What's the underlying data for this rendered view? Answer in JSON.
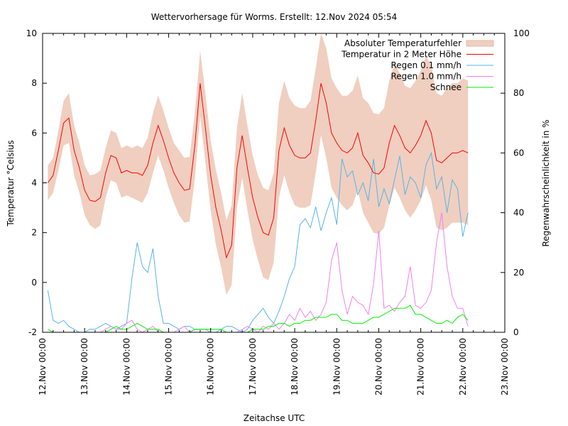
{
  "chart_data": {
    "type": "line",
    "title": "Wettervorhersage für Worms. Erstellt: 12.Nov 2024 05:54",
    "xlabel": "Zeitachse UTC",
    "ylabel": "Temperatur °Celsius",
    "y2label": "Regenwahrscheinlichkeit in %",
    "xlim_hours": [
      0,
      264
    ],
    "ylim": [
      -2,
      10
    ],
    "y2lim": [
      0,
      100
    ],
    "yticks": [
      "-2",
      "0",
      "2",
      "4",
      "6",
      "8",
      "10"
    ],
    "y2ticks": [
      "0",
      "20",
      "40",
      "60",
      "80",
      "100"
    ],
    "xticks": [
      "12.Nov 00:00",
      "13.Nov 00:00",
      "14.Nov 00:00",
      "15.Nov 00:00",
      "16.Nov 00:00",
      "17.Nov 00:00",
      "18.Nov 00:00",
      "19.Nov 00:00",
      "20.Nov 00:00",
      "21.Nov 00:00",
      "22.Nov 00:00",
      "23.Nov 00:00"
    ],
    "grid": false,
    "legend_position": "top-right",
    "legend": [
      {
        "label": "Absoluter Temperaturfehler",
        "color": "#f0cfc0",
        "kind": "band"
      },
      {
        "label": "Temperatur in 2 Meter Höhe",
        "color": "#ff0000",
        "kind": "line"
      },
      {
        "label": "Regen 0.1 mm/h",
        "color": "#56b4e9",
        "kind": "line"
      },
      {
        "label": "Regen 1.0 mm/h",
        "color": "#ee82ee",
        "kind": "line"
      },
      {
        "label": "Schnee",
        "color": "#00ee00",
        "kind": "line"
      }
    ],
    "x_hours": [
      3,
      6,
      9,
      12,
      15,
      18,
      21,
      24,
      27,
      30,
      33,
      36,
      39,
      42,
      45,
      48,
      51,
      54,
      57,
      60,
      63,
      66,
      69,
      72,
      75,
      78,
      81,
      84,
      87,
      90,
      93,
      96,
      99,
      102,
      105,
      108,
      111,
      114,
      117,
      120,
      123,
      126,
      129,
      132,
      135,
      138,
      141,
      144,
      147,
      150,
      153,
      156,
      159,
      162,
      165,
      168,
      171,
      174,
      177,
      180,
      183,
      186,
      189,
      192,
      195,
      198,
      201,
      204,
      207,
      210,
      213,
      216,
      219,
      222,
      225,
      228,
      231,
      234,
      237,
      240,
      243
    ],
    "series": [
      {
        "name": "Temperatur in 2 Meter Höhe",
        "axis": "left",
        "values": [
          4.0,
          4.3,
          5.3,
          6.4,
          6.6,
          5.3,
          4.6,
          3.7,
          3.3,
          3.25,
          3.4,
          4.4,
          5.1,
          5.0,
          4.4,
          4.5,
          4.4,
          4.4,
          4.3,
          4.7,
          5.6,
          6.3,
          5.7,
          5.0,
          4.4,
          4.0,
          3.7,
          3.75,
          5.5,
          8.0,
          6.2,
          4.3,
          3.0,
          2.1,
          1.0,
          1.5,
          4.6,
          5.9,
          4.6,
          3.4,
          2.6,
          2.0,
          1.9,
          2.6,
          5.3,
          6.2,
          5.5,
          5.1,
          5.0,
          5.0,
          5.2,
          6.5,
          8.0,
          7.2,
          6.0,
          5.6,
          5.3,
          5.2,
          5.4,
          6.0,
          5.1,
          4.8,
          4.4,
          4.35,
          4.6,
          5.6,
          6.3,
          5.9,
          5.4,
          5.2,
          5.5,
          5.9,
          6.5,
          6.0,
          4.9,
          4.8,
          5.0,
          5.2,
          5.2,
          5.3,
          5.2
        ],
        "error_abs": [
          0.7,
          0.7,
          0.8,
          0.9,
          1.0,
          1.0,
          1.0,
          1.0,
          1.0,
          1.1,
          1.1,
          1.0,
          1.0,
          1.0,
          1.0,
          1.0,
          1.0,
          1.1,
          1.1,
          1.1,
          1.2,
          1.2,
          1.2,
          1.2,
          1.2,
          1.3,
          1.3,
          1.3,
          1.3,
          1.3,
          1.4,
          1.4,
          1.5,
          1.5,
          1.5,
          1.6,
          1.6,
          1.7,
          1.7,
          1.7,
          1.7,
          1.8,
          1.8,
          1.8,
          1.9,
          1.9,
          1.9,
          2.0,
          2.0,
          2.0,
          2.1,
          2.1,
          2.1,
          2.2,
          2.2,
          2.2,
          2.2,
          2.3,
          2.3,
          2.3,
          2.3,
          2.4,
          2.4,
          2.4,
          2.4,
          2.5,
          2.5,
          2.5,
          2.5,
          2.6,
          2.6,
          2.6,
          2.6,
          2.7,
          2.7,
          2.7,
          2.8,
          2.8,
          2.8,
          2.9,
          2.9
        ]
      },
      {
        "name": "Regen 0.1 mm/h",
        "axis": "right",
        "values": [
          14,
          4,
          3,
          4,
          2,
          1,
          0,
          0,
          1,
          1,
          2,
          3,
          2,
          1,
          2,
          3,
          18,
          30,
          22,
          20,
          28,
          12,
          3,
          3,
          2,
          1,
          2,
          2,
          1,
          1,
          1,
          0,
          0,
          1,
          2,
          2,
          1,
          0,
          1,
          4,
          6,
          8,
          5,
          3,
          7,
          12,
          18,
          22,
          36,
          38,
          35,
          42,
          34,
          40,
          45,
          36,
          58,
          52,
          54,
          46,
          50,
          44,
          58,
          42,
          48,
          43,
          51,
          59,
          46,
          52,
          50,
          45,
          56,
          60,
          48,
          52,
          40,
          51,
          48,
          32,
          40
        ]
      },
      {
        "name": "Regen 1.0 mm/h",
        "axis": "right",
        "values": [
          0,
          0,
          0,
          0,
          0,
          0,
          0,
          0,
          0,
          0,
          0,
          1,
          2,
          1,
          1,
          3,
          4,
          1,
          0,
          1,
          2,
          0,
          0,
          0,
          0,
          1,
          2,
          0,
          0,
          0,
          0,
          0,
          0,
          0,
          0,
          0,
          0,
          1,
          2,
          1,
          0,
          2,
          1,
          3,
          1,
          3,
          6,
          4,
          8,
          5,
          7,
          4,
          6,
          10,
          24,
          30,
          14,
          6,
          12,
          10,
          9,
          6,
          16,
          34,
          8,
          9,
          7,
          10,
          12,
          22,
          9,
          8,
          10,
          14,
          30,
          40,
          22,
          12,
          8,
          8,
          2
        ]
      },
      {
        "name": "Schnee",
        "axis": "right",
        "values": [
          1,
          0,
          0,
          0,
          0,
          0,
          0,
          0,
          0,
          0,
          0,
          0,
          1,
          2,
          1,
          1,
          2,
          3,
          2,
          1,
          1,
          1,
          0,
          0,
          0,
          0,
          0,
          0,
          1,
          1,
          1,
          1,
          1,
          1,
          0,
          0,
          0,
          0,
          0,
          1,
          1,
          1,
          2,
          2,
          3,
          3,
          2,
          3,
          3,
          4,
          4,
          5,
          5,
          5,
          6,
          6,
          4,
          4,
          3,
          3,
          3,
          4,
          5,
          5,
          6,
          7,
          8,
          8,
          8,
          9,
          6,
          6,
          5,
          4,
          3,
          3,
          4,
          3,
          5,
          6,
          4
        ]
      }
    ]
  }
}
